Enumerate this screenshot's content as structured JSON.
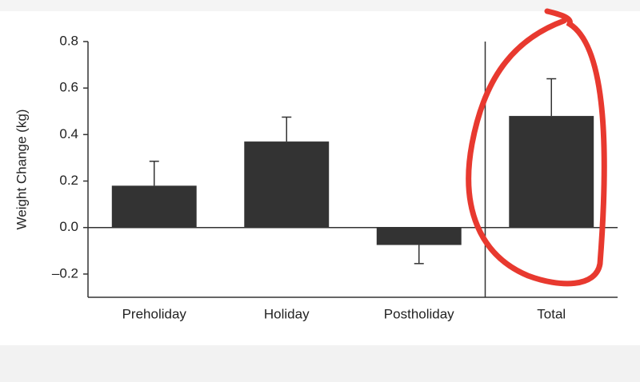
{
  "chart_data": {
    "type": "bar",
    "ylabel": "Weight Change (kg)",
    "categories": [
      "Preholiday",
      "Holiday",
      "Postholiday",
      "Total"
    ],
    "values": [
      0.18,
      0.37,
      -0.075,
      0.48
    ],
    "errors": [
      0.105,
      0.105,
      0.08,
      0.16
    ],
    "color": "#333333",
    "ylim": [
      -0.3,
      0.8
    ],
    "yticks": [
      0.8,
      0.6,
      0.4,
      0.2,
      {
        "value": 0,
        "label": "0.0"
      },
      {
        "value": -0.2,
        "label": "–0.2"
      }
    ]
  }
}
